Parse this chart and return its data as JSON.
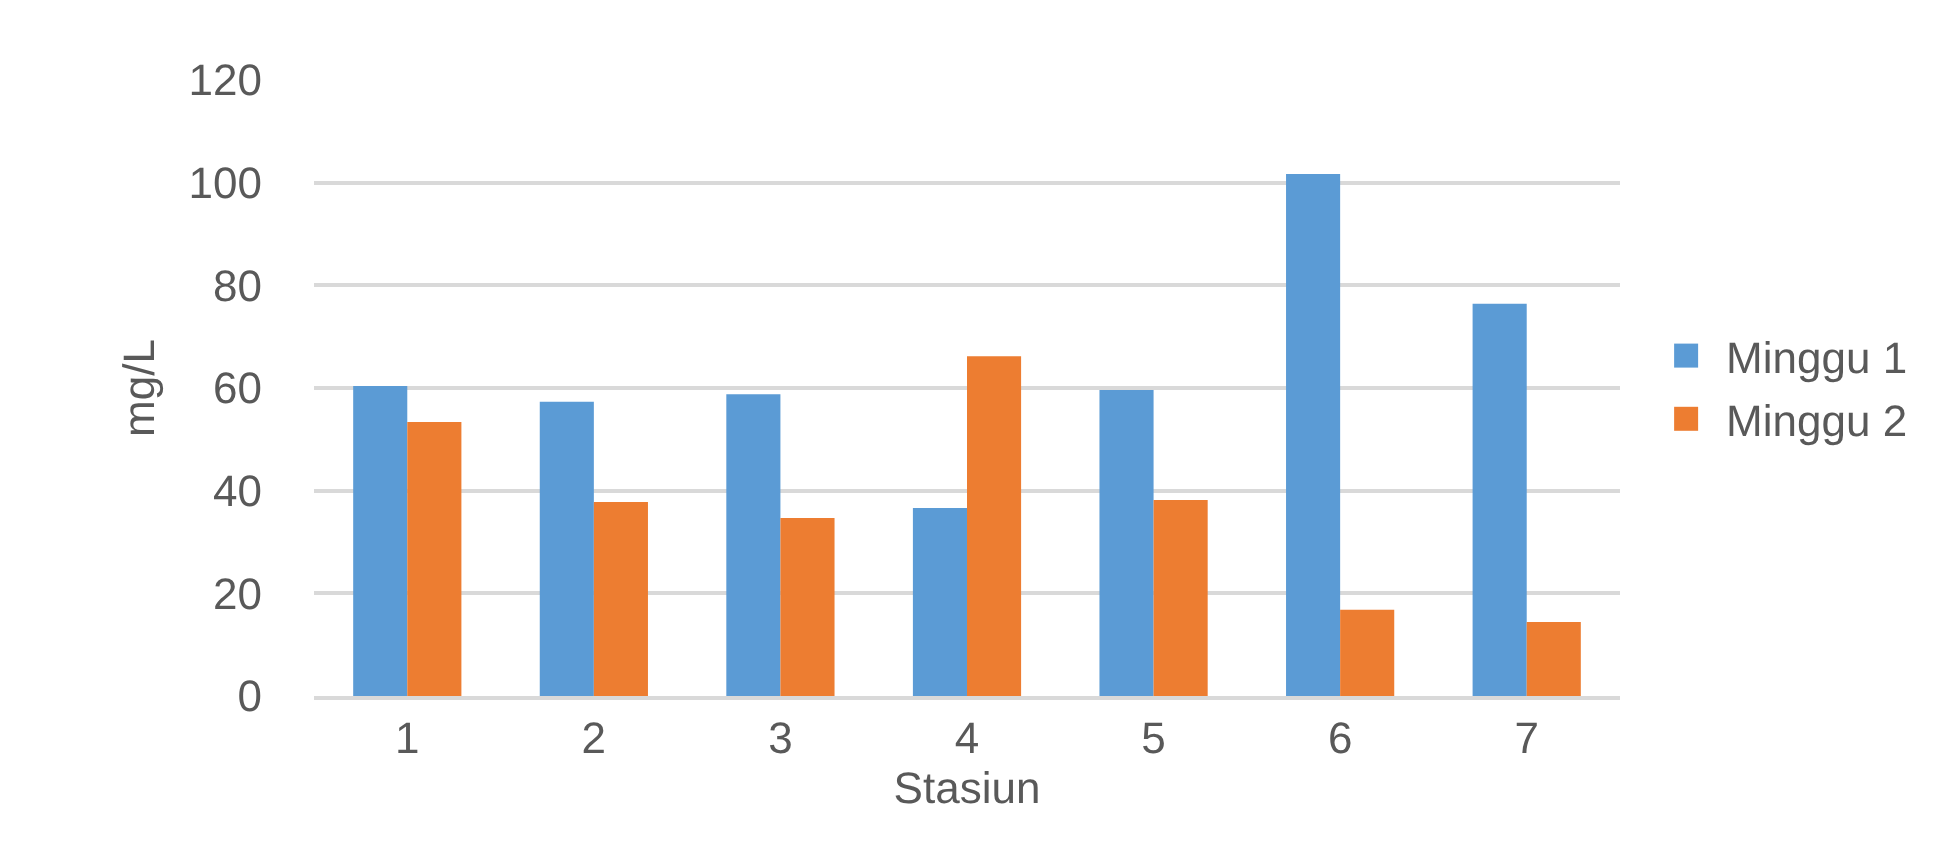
{
  "chart_data": {
    "type": "bar",
    "xlabel": "Stasiun",
    "ylabel": "mg/L",
    "categories": [
      "1",
      "2",
      "3",
      "4",
      "5",
      "6",
      "7"
    ],
    "series": [
      {
        "name": "Minggu 1",
        "color": "#5b9bd5",
        "values": [
          60.4,
          57.3,
          58.8,
          36.6,
          59.6,
          101.7,
          76.4
        ]
      },
      {
        "name": "Minggu 2",
        "color": "#ed7d31",
        "values": [
          53.4,
          37.8,
          34.7,
          66.2,
          38.2,
          16.8,
          14.4
        ]
      }
    ],
    "ylim": [
      0,
      120
    ],
    "yticks": [
      0,
      20,
      40,
      60,
      80,
      100,
      120
    ],
    "grid": "y",
    "legend": "right"
  }
}
